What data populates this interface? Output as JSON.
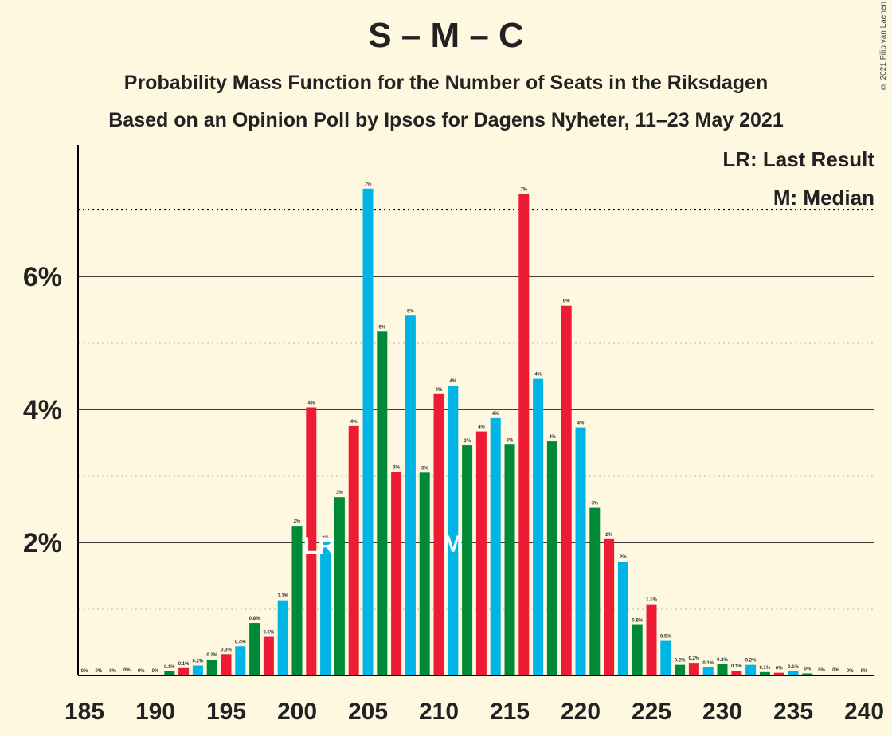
{
  "header": {
    "title": "S – M – C",
    "subtitle1": "Probability Mass Function for the Number of Seats in the Riksdagen",
    "subtitle2": "Based on an Opinion Poll by Ipsos for Dagens Nyheter, 11–23 May 2021",
    "copyright": "© 2021 Filip van Laenen"
  },
  "legend": {
    "last_result": "LR: Last Result",
    "median": "M: Median"
  },
  "colors": {
    "background": "#FFF8E1",
    "palette": [
      "#00B4E6",
      "#008A37",
      "#ED1B34"
    ]
  },
  "chart_data": {
    "type": "bar",
    "x": [
      185,
      186,
      187,
      188,
      189,
      190,
      191,
      192,
      193,
      194,
      195,
      196,
      197,
      198,
      199,
      200,
      201,
      202,
      203,
      204,
      205,
      206,
      207,
      208,
      209,
      210,
      211,
      212,
      213,
      214,
      215,
      216,
      217,
      218,
      219,
      220,
      221,
      222,
      223,
      224,
      225,
      226,
      227,
      228,
      229,
      230,
      231,
      232,
      233,
      234,
      235,
      236,
      237,
      238,
      239,
      240
    ],
    "values": [
      0,
      0,
      0,
      0.01,
      0,
      0,
      0.06,
      0.11,
      0.15,
      0.24,
      0.32,
      0.44,
      0.79,
      0.58,
      1.13,
      2.25,
      4.03,
      2.0,
      2.68,
      3.75,
      7.32,
      5.17,
      3.06,
      5.41,
      3.05,
      4.23,
      4.36,
      3.46,
      3.67,
      3.87,
      3.47,
      7.24,
      4.46,
      3.52,
      5.56,
      3.73,
      2.52,
      2.05,
      1.71,
      0.76,
      1.07,
      0.52,
      0.16,
      0.19,
      0.12,
      0.17,
      0.07,
      0.16,
      0.05,
      0.04,
      0.06,
      0.03,
      0.01,
      0.01,
      0,
      0
    ],
    "labels": [
      "0%",
      "0%",
      "0%",
      "0%",
      "0%",
      "0%",
      "0.1%",
      "0.1%",
      "0.2%",
      "0.2%",
      "0.3%",
      "0.4%",
      "0.8%",
      "0.6%",
      "1.1%",
      "2%",
      "4%",
      "2%",
      "3%",
      "4%",
      "7%",
      "5%",
      "3%",
      "5%",
      "3%",
      "4%",
      "4%",
      "3%",
      "4%",
      "4%",
      "3%",
      "7%",
      "4%",
      "4%",
      "6%",
      "4%",
      "3%",
      "2%",
      "2%",
      "0.8%",
      "1.1%",
      "0.5%",
      "0.2%",
      "0.2%",
      "0.1%",
      "0.2%",
      "0.1%",
      "0.2%",
      "0.1%",
      "0%",
      "0.1%",
      "0%",
      "0%",
      "0%",
      "0%",
      "0%"
    ],
    "x_ticks": [
      185,
      190,
      195,
      200,
      205,
      210,
      215,
      220,
      225,
      230,
      235,
      240
    ],
    "x_tick_labels": [
      "185",
      "190",
      "195",
      "200",
      "205",
      "210",
      "215",
      "220",
      "225",
      "230",
      "235",
      "240"
    ],
    "y_ticks_major": [
      2,
      4,
      6
    ],
    "y_tick_labels": [
      "2%",
      "4%",
      "6%"
    ],
    "y_ticks_minor": [
      1,
      3,
      5,
      7
    ],
    "ylim": [
      0,
      8
    ],
    "last_result": {
      "x": 201,
      "label": "LR"
    },
    "median": {
      "x": 211,
      "label": "M"
    },
    "xlabel": "",
    "ylabel": ""
  }
}
